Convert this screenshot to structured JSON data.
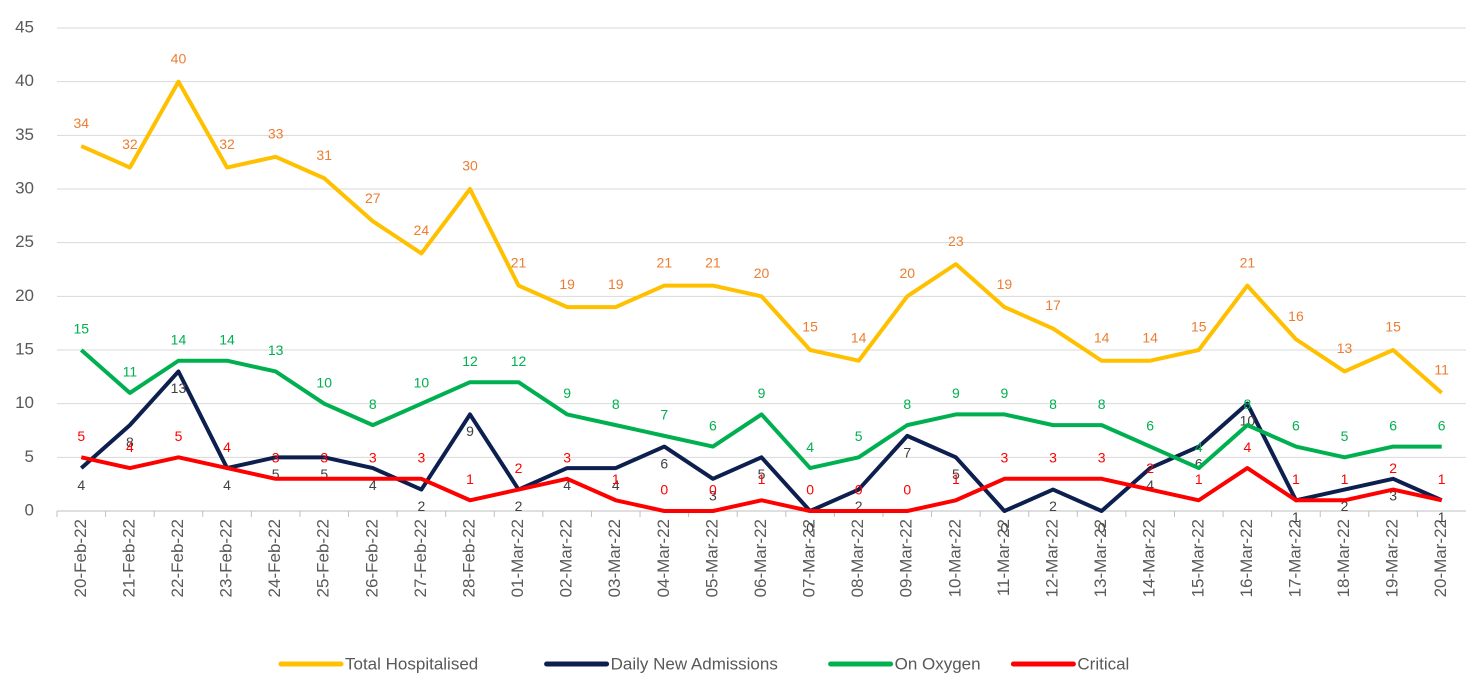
{
  "chart_data": {
    "type": "line",
    "categories": [
      "20-Feb-22",
      "21-Feb-22",
      "22-Feb-22",
      "23-Feb-22",
      "24-Feb-22",
      "25-Feb-22",
      "26-Feb-22",
      "27-Feb-22",
      "28-Feb-22",
      "01-Mar-22",
      "02-Mar-22",
      "03-Mar-22",
      "04-Mar-22",
      "05-Mar-22",
      "06-Mar-22",
      "07-Mar-22",
      "08-Mar-22",
      "09-Mar-22",
      "10-Mar-22",
      "11-Mar-22",
      "12-Mar-22",
      "13-Mar-22",
      "14-Mar-22",
      "15-Mar-22",
      "16-Mar-22",
      "17-Mar-22",
      "18-Mar-22",
      "19-Mar-22",
      "20-Mar-22"
    ],
    "series": [
      {
        "name": "Total Hospitalised",
        "color": "#ffc000",
        "label_color": "#ed7d31",
        "values": [
          34,
          32,
          40,
          32,
          33,
          31,
          27,
          24,
          30,
          21,
          19,
          19,
          21,
          21,
          20,
          15,
          14,
          20,
          23,
          19,
          17,
          14,
          14,
          15,
          21,
          16,
          13,
          15,
          11
        ]
      },
      {
        "name": "Daily New Admissions",
        "color": "#0d1f4f",
        "label_color": "#404040",
        "values": [
          4,
          8,
          13,
          4,
          5,
          5,
          4,
          2,
          9,
          2,
          4,
          4,
          6,
          3,
          5,
          0,
          2,
          7,
          5,
          0,
          2,
          0,
          4,
          6,
          10,
          1,
          2,
          3,
          1
        ]
      },
      {
        "name": "On Oxygen",
        "color": "#00b050",
        "label_color": "#00b050",
        "values": [
          15,
          11,
          14,
          14,
          13,
          10,
          8,
          10,
          12,
          12,
          9,
          8,
          7,
          6,
          9,
          4,
          5,
          8,
          9,
          9,
          8,
          8,
          6,
          4,
          8,
          6,
          5,
          6,
          6
        ]
      },
      {
        "name": "Critical",
        "color": "#ff0000",
        "label_color": "#ff0000",
        "values": [
          5,
          4,
          5,
          4,
          3,
          3,
          3,
          3,
          1,
          2,
          3,
          1,
          0,
          0,
          1,
          0,
          0,
          0,
          1,
          3,
          3,
          3,
          2,
          1,
          4,
          1,
          1,
          2,
          1
        ]
      }
    ],
    "ylim": [
      0,
      45
    ],
    "yticks": [
      0,
      5,
      10,
      15,
      20,
      25,
      30,
      35,
      40,
      45
    ],
    "grid": true,
    "legend": "bottom"
  }
}
